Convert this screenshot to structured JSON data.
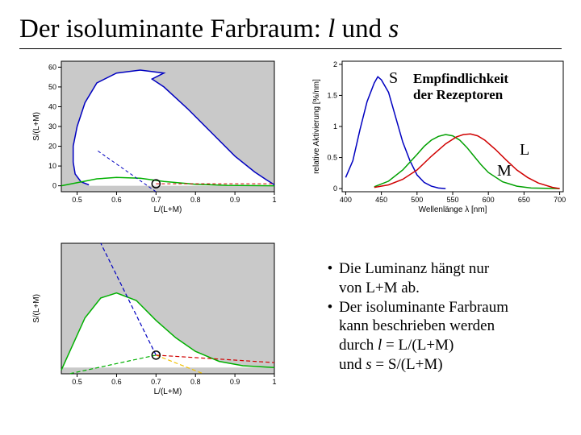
{
  "title": {
    "prefix": "Der isoluminante Farbraum: ",
    "l": "l",
    "mid": " und ",
    "s": "s"
  },
  "chart_tl": {
    "xlabel": "L/(L+M)",
    "ylabel": "S/(L+M)",
    "xticks": [
      0.5,
      0.6,
      0.7,
      0.8,
      0.9,
      1
    ],
    "yticks": [
      0,
      10,
      20,
      30,
      40,
      50,
      60
    ],
    "xlim": [
      0.46,
      1.0
    ],
    "ylim": [
      -3,
      63
    ],
    "bg_gray": "#c9c9c9",
    "curve_color": "#0000c0",
    "green_color": "#00b000",
    "red_dash_color": "#d00000",
    "blue_dash_color": "#0000c0",
    "marker_x": 0.7,
    "marker_y": 1,
    "curve_pts": [
      [
        0.53,
        0.5
      ],
      [
        0.51,
        2
      ],
      [
        0.495,
        6
      ],
      [
        0.49,
        12
      ],
      [
        0.49,
        20
      ],
      [
        0.5,
        30
      ],
      [
        0.52,
        42
      ],
      [
        0.55,
        52
      ],
      [
        0.6,
        57
      ],
      [
        0.66,
        58.5
      ],
      [
        0.72,
        57
      ],
      [
        0.69,
        54
      ],
      [
        0.72,
        50
      ],
      [
        0.78,
        39
      ],
      [
        0.84,
        27
      ],
      [
        0.9,
        15
      ],
      [
        0.95,
        7
      ],
      [
        0.98,
        3
      ],
      [
        1.0,
        0.5
      ]
    ],
    "green_pts": [
      [
        0.46,
        0.0
      ],
      [
        0.55,
        3.5
      ],
      [
        0.6,
        4.2
      ],
      [
        0.66,
        3.8
      ],
      [
        0.72,
        2.2
      ],
      [
        0.8,
        0.8
      ],
      [
        0.88,
        0.2
      ],
      [
        1.0,
        0.0
      ]
    ]
  },
  "chart_bl": {
    "xlabel": "L/(L+M)",
    "ylabel": "S/(L+M)",
    "xticks": [
      0.5,
      0.6,
      0.7,
      0.8,
      0.9,
      1
    ],
    "xlim": [
      0.46,
      1.0
    ],
    "ylim": [
      -0.5,
      10
    ],
    "bg_gray": "#c9c9c9",
    "green_color": "#00b000",
    "blue_dash_color": "#0000c0",
    "red_dash_color": "#d00000",
    "yellow_dash_color": "#f0c000",
    "marker_x": 0.7,
    "marker_y": 1.0,
    "green_pts": [
      [
        0.46,
        -0.2
      ],
      [
        0.52,
        4.0
      ],
      [
        0.56,
        5.6
      ],
      [
        0.6,
        6.0
      ],
      [
        0.65,
        5.4
      ],
      [
        0.7,
        3.8
      ],
      [
        0.75,
        2.4
      ],
      [
        0.8,
        1.3
      ],
      [
        0.86,
        0.5
      ],
      [
        0.92,
        0.15
      ],
      [
        1.0,
        0.0
      ]
    ]
  },
  "chart_tr": {
    "xlabel": "Wellenlänge λ [nm]",
    "ylabel": "relative Aktivierung [%/nm]",
    "xticks": [
      400,
      450,
      500,
      550,
      600,
      650,
      700
    ],
    "yticks": [
      0,
      0.5,
      1,
      1.5,
      2
    ],
    "xlim": [
      395,
      705
    ],
    "ylim": [
      -0.05,
      2.05
    ],
    "s_color": "#0000c0",
    "m_color": "#00a000",
    "l_color": "#d00000",
    "s_pts": [
      [
        400,
        0.18
      ],
      [
        410,
        0.45
      ],
      [
        420,
        0.95
      ],
      [
        430,
        1.4
      ],
      [
        440,
        1.7
      ],
      [
        445,
        1.8
      ],
      [
        450,
        1.75
      ],
      [
        460,
        1.55
      ],
      [
        470,
        1.15
      ],
      [
        480,
        0.75
      ],
      [
        490,
        0.45
      ],
      [
        500,
        0.22
      ],
      [
        510,
        0.1
      ],
      [
        520,
        0.04
      ],
      [
        530,
        0.01
      ],
      [
        540,
        0.0
      ]
    ],
    "m_pts": [
      [
        440,
        0.03
      ],
      [
        460,
        0.12
      ],
      [
        480,
        0.3
      ],
      [
        500,
        0.55
      ],
      [
        510,
        0.68
      ],
      [
        520,
        0.78
      ],
      [
        530,
        0.84
      ],
      [
        540,
        0.87
      ],
      [
        550,
        0.85
      ],
      [
        560,
        0.78
      ],
      [
        570,
        0.66
      ],
      [
        580,
        0.52
      ],
      [
        590,
        0.38
      ],
      [
        600,
        0.26
      ],
      [
        620,
        0.11
      ],
      [
        640,
        0.04
      ],
      [
        660,
        0.01
      ],
      [
        700,
        0.0
      ]
    ],
    "l_pts": [
      [
        440,
        0.02
      ],
      [
        460,
        0.06
      ],
      [
        480,
        0.15
      ],
      [
        500,
        0.3
      ],
      [
        520,
        0.52
      ],
      [
        540,
        0.72
      ],
      [
        555,
        0.83
      ],
      [
        565,
        0.87
      ],
      [
        575,
        0.88
      ],
      [
        585,
        0.85
      ],
      [
        595,
        0.78
      ],
      [
        610,
        0.63
      ],
      [
        625,
        0.46
      ],
      [
        640,
        0.3
      ],
      [
        655,
        0.18
      ],
      [
        670,
        0.09
      ],
      [
        690,
        0.02
      ],
      [
        700,
        0.0
      ]
    ],
    "s_label": "S",
    "m_label": "M",
    "l_label": "L",
    "caption_line1": "Empfindlichkeit",
    "caption_line2": "der Rezeptoren"
  },
  "bullets": {
    "b1_l1": "Die Luminanz hängt nur",
    "b1_l2": "von L+M ab.",
    "b2_l1": "Der isoluminante Farbraum",
    "b2_l2": "kann beschrieben werden",
    "b2_l3a": "durch ",
    "b2_l3_it": "l",
    "b2_l3b": " = L/(L+M)",
    "b2_l4a": "und   ",
    "b2_l4_it": "s",
    "b2_l4b": " = S/(L+M)"
  },
  "colors": {
    "text": "#000000",
    "rule": "#000000"
  }
}
